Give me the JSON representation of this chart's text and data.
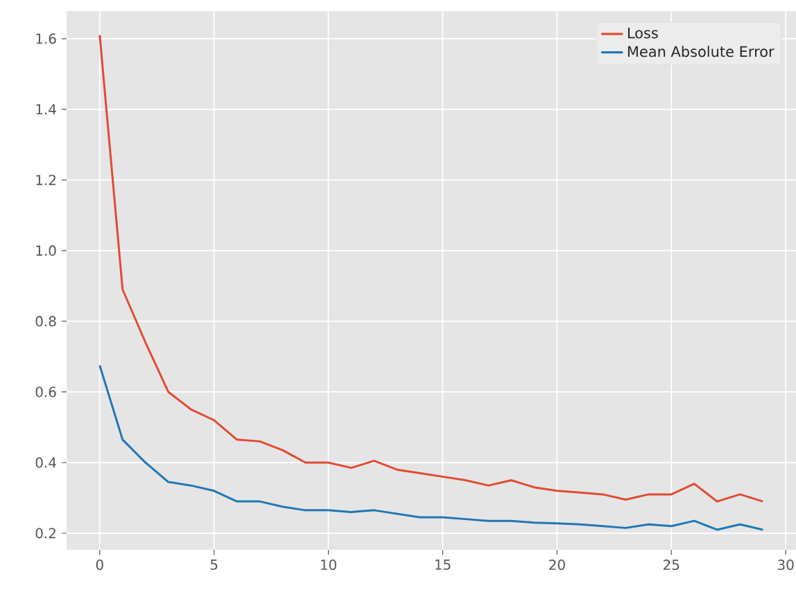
{
  "chart_data": {
    "type": "line",
    "x": [
      0,
      1,
      2,
      3,
      4,
      5,
      6,
      7,
      8,
      9,
      10,
      11,
      12,
      13,
      14,
      15,
      16,
      17,
      18,
      19,
      20,
      21,
      22,
      23,
      24,
      25,
      26,
      27,
      28,
      29
    ],
    "series": [
      {
        "name": "Loss",
        "color": "#e24a33",
        "values": [
          1.61,
          0.89,
          0.74,
          0.6,
          0.55,
          0.52,
          0.465,
          0.46,
          0.435,
          0.4,
          0.4,
          0.385,
          0.405,
          0.38,
          0.37,
          0.36,
          0.35,
          0.335,
          0.35,
          0.33,
          0.32,
          0.315,
          0.31,
          0.295,
          0.31,
          0.31,
          0.34,
          0.29,
          0.31,
          0.29
        ]
      },
      {
        "name": "Mean Absolute Error",
        "color": "#1f77b4",
        "values": [
          0.675,
          0.465,
          0.4,
          0.345,
          0.335,
          0.32,
          0.29,
          0.29,
          0.275,
          0.265,
          0.265,
          0.26,
          0.265,
          0.255,
          0.245,
          0.245,
          0.24,
          0.235,
          0.235,
          0.23,
          0.228,
          0.225,
          0.22,
          0.215,
          0.225,
          0.22,
          0.235,
          0.21,
          0.225,
          0.21
        ]
      }
    ],
    "xlim": [
      -1.45,
      30.45
    ],
    "ylim": [
      0.153,
      1.678
    ],
    "xticks": [
      0,
      5,
      10,
      15,
      20,
      25,
      30
    ],
    "yticks": [
      0.2,
      0.4,
      0.6,
      0.8,
      {
        "value": 1.0,
        "label": "1.0"
      },
      1.2,
      1.4,
      1.6
    ],
    "grid": true,
    "legend": "top right",
    "marker": "none",
    "line_style": "solid"
  }
}
